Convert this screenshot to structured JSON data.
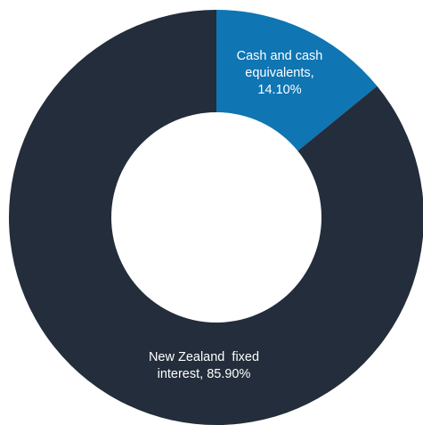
{
  "chart_data": {
    "type": "pie",
    "donut": true,
    "title": "",
    "legend": "none",
    "slices": [
      {
        "name": "Cash and cash equivalents",
        "value": 14.1,
        "color": "#0f75b3",
        "label_lines": [
          "Cash and cash",
          "equivalents,",
          "14.10%"
        ]
      },
      {
        "name": "New Zealand fixed interest",
        "value": 85.9,
        "color": "#232d3b",
        "label_lines": [
          "New Zealand  fixed",
          "interest, 85.90%"
        ]
      }
    ]
  }
}
